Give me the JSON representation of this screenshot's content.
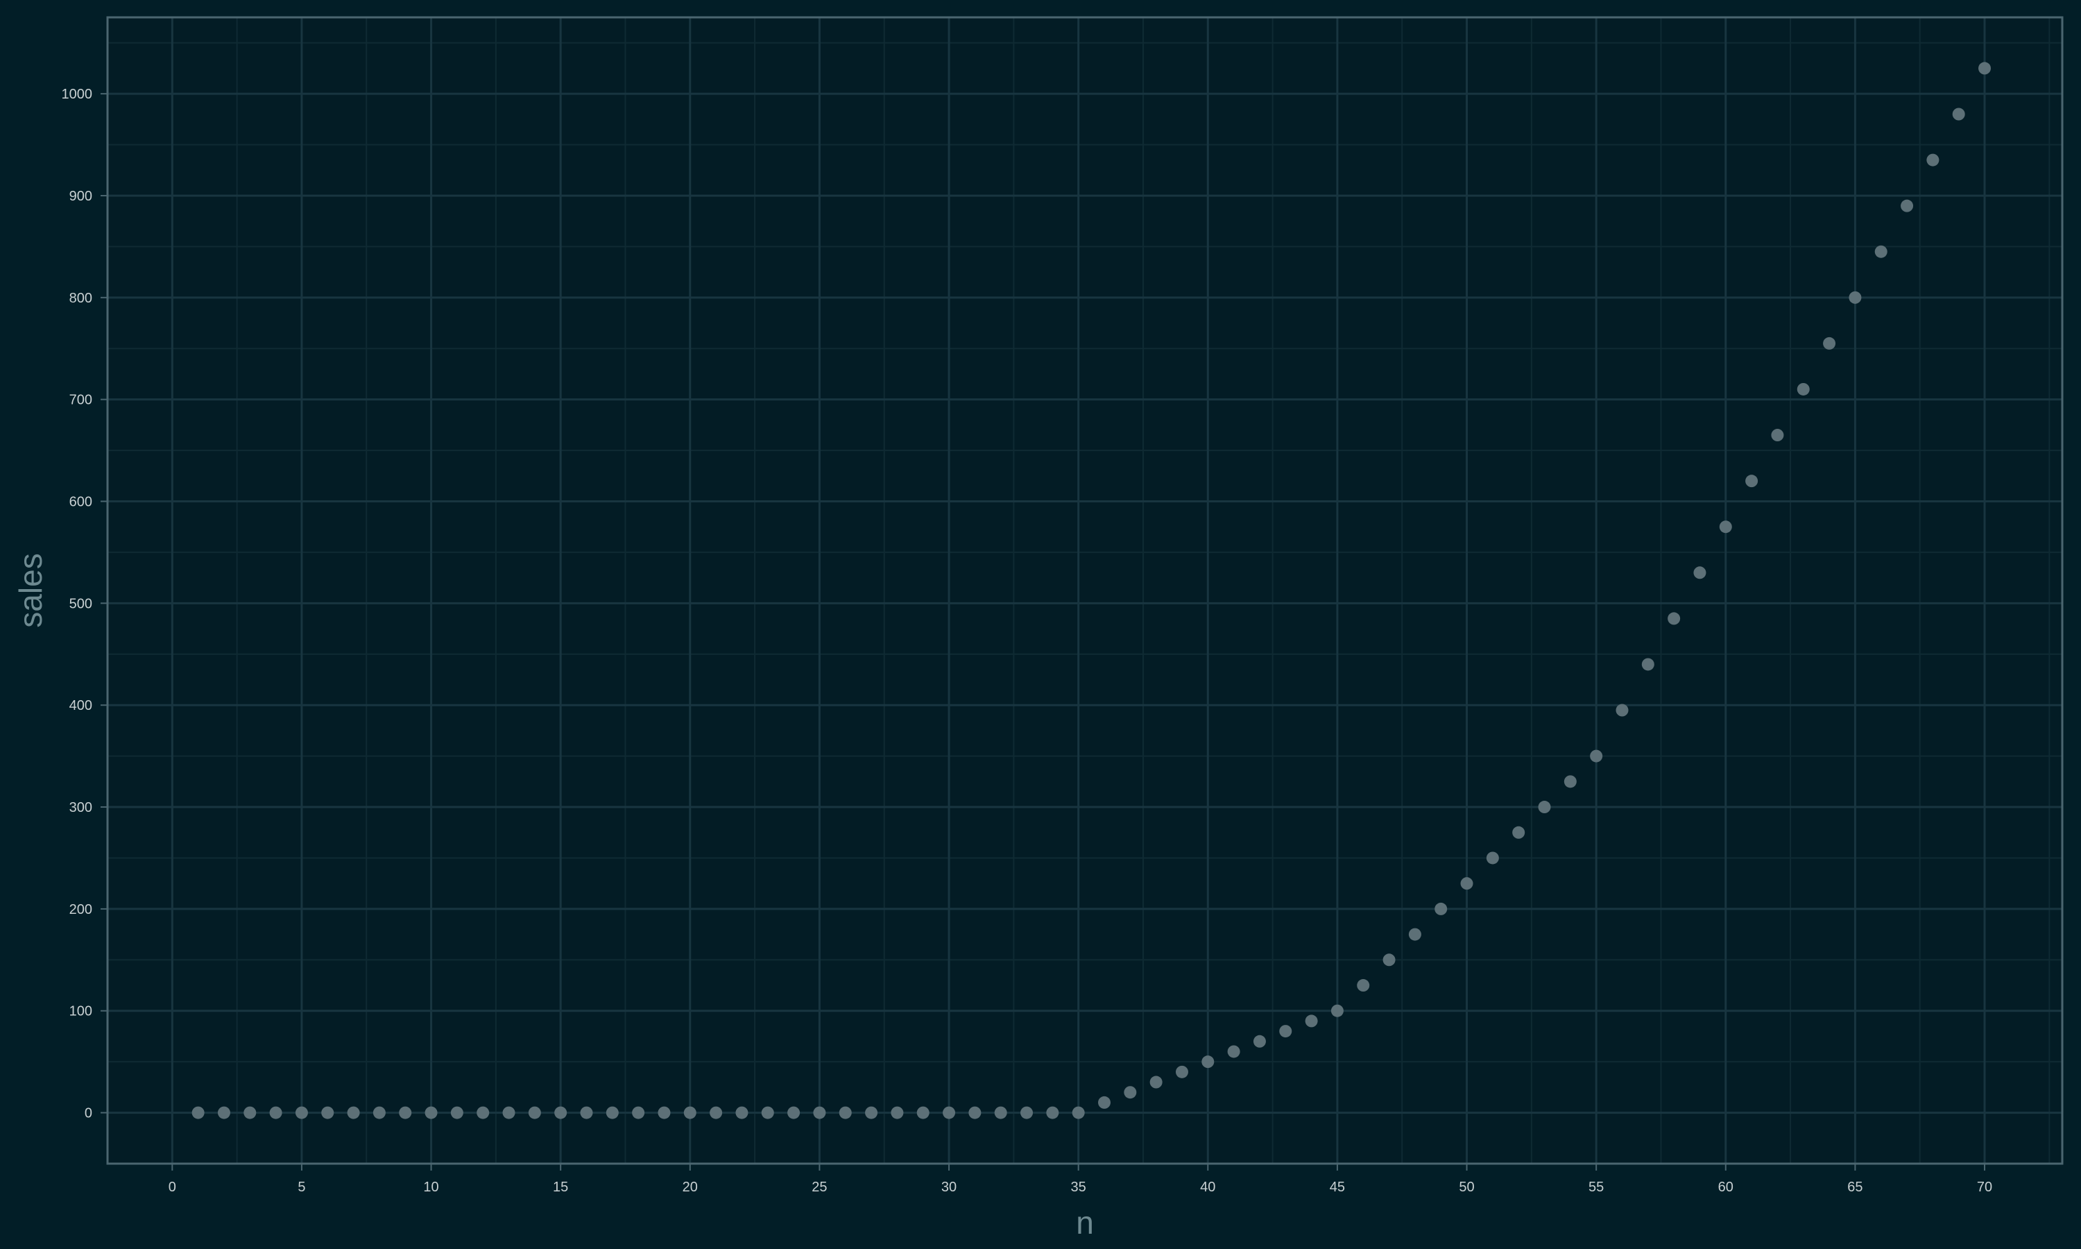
{
  "colors": {
    "background": "#021e27",
    "panel": "#031c25",
    "grid_major": "#183540",
    "grid_minor": "#0f2a33",
    "panel_border": "#4b6670",
    "axis_tick": "#4b6670",
    "tick_label": "#c9d1d3",
    "axis_title": "#6e8a91",
    "point": "#5d7077"
  },
  "chart_data": {
    "type": "scatter",
    "title": "",
    "xlabel": "n",
    "ylabel": "sales",
    "xlim": [
      -2.5,
      73
    ],
    "ylim": [
      -50,
      1075
    ],
    "x_ticks": [
      0,
      5,
      10,
      15,
      20,
      25,
      30,
      35,
      40,
      45,
      50,
      55,
      60,
      65,
      70
    ],
    "y_ticks": [
      0,
      100,
      200,
      300,
      400,
      500,
      600,
      700,
      800,
      900,
      1000
    ],
    "grid": true,
    "legend": "none",
    "series": [
      {
        "x": [
          1,
          2,
          3,
          4,
          5,
          6,
          7,
          8,
          9,
          10,
          11,
          12,
          13,
          14,
          15,
          16,
          17,
          18,
          19,
          20,
          21,
          22,
          23,
          24,
          25,
          26,
          27,
          28,
          29,
          30,
          31,
          32,
          33,
          34,
          35,
          36,
          37,
          38,
          39,
          40,
          41,
          42,
          43,
          44,
          45,
          46,
          47,
          48,
          49,
          50,
          51,
          52,
          53,
          54,
          55,
          56,
          57,
          58,
          59,
          60,
          61,
          62,
          63,
          64,
          65,
          66,
          67,
          68,
          69,
          70
        ],
        "y": [
          0,
          0,
          0,
          0,
          0,
          0,
          0,
          0,
          0,
          0,
          0,
          0,
          0,
          0,
          0,
          0,
          0,
          0,
          0,
          0,
          0,
          0,
          0,
          0,
          0,
          0,
          0,
          0,
          0,
          0,
          0,
          0,
          0,
          0,
          0,
          10,
          20,
          30,
          40,
          50,
          60,
          70,
          80,
          90,
          100,
          125,
          150,
          175,
          200,
          225,
          250,
          275,
          300,
          325,
          350,
          395,
          440,
          485,
          530,
          575,
          620,
          665,
          710,
          755,
          800,
          845,
          890,
          935,
          980,
          1025
        ]
      }
    ]
  }
}
